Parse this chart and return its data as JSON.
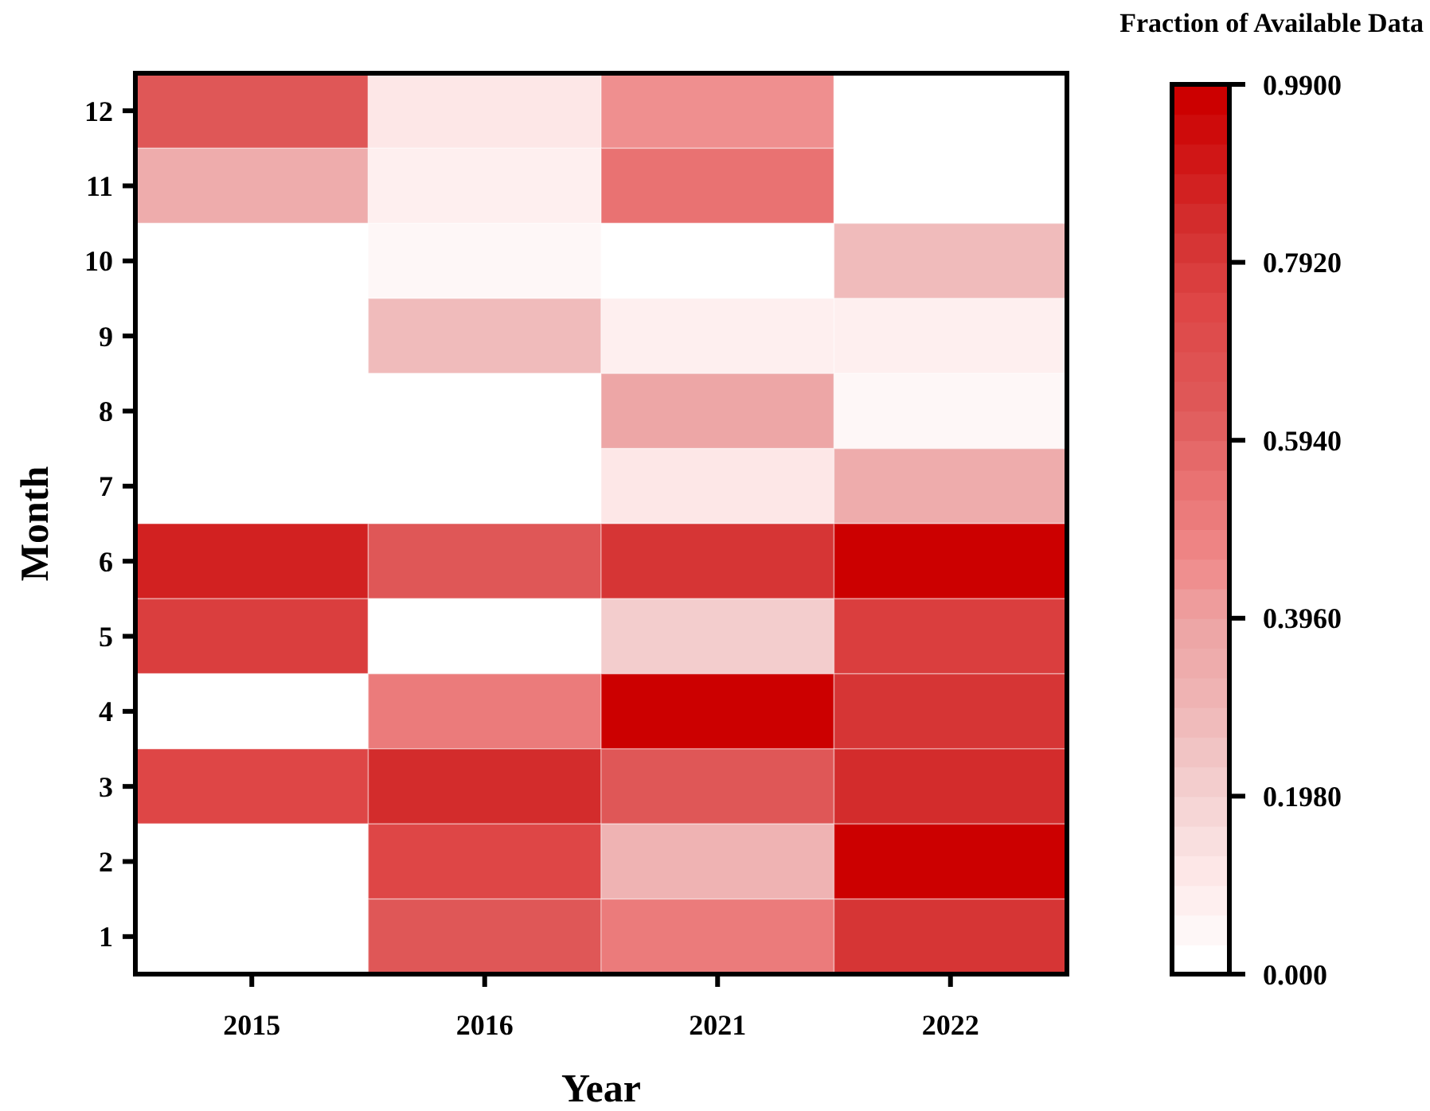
{
  "chart_data": {
    "type": "heatmap",
    "xlabel": "Year",
    "ylabel": "Month",
    "clabel": "Fraction of Available Data",
    "categories": [
      "2015",
      "2016",
      "2021",
      "2022"
    ],
    "y_categories": [
      "12",
      "11",
      "10",
      "9",
      "8",
      "7",
      "6",
      "5",
      "4",
      "3",
      "2",
      "1"
    ],
    "cells": [
      [
        0.63,
        0.12,
        0.46,
        0
      ],
      [
        0.35,
        0.09,
        0.56,
        0
      ],
      [
        0,
        0.06,
        0,
        0.28
      ],
      [
        0,
        0.28,
        0.09,
        0.09
      ],
      [
        0,
        0,
        0.38,
        0.06
      ],
      [
        0,
        0,
        0.12,
        0.35
      ],
      [
        0.88,
        0.64,
        0.8,
        0.99
      ],
      [
        0.76,
        0,
        0.2,
        0.76
      ],
      [
        0,
        0.5,
        0.99,
        0.8
      ],
      [
        0.75,
        0.84,
        0.64,
        0.84
      ],
      [
        0,
        0.75,
        0.32,
        0.96
      ],
      [
        0,
        0.64,
        0.5,
        0.8
      ]
    ],
    "clim": [
      0,
      0.99
    ],
    "cticks": [
      {
        "value": 0,
        "label": "0.000"
      },
      {
        "value": 0.198,
        "label": "0.1980"
      },
      {
        "value": 0.396,
        "label": "0.3960"
      },
      {
        "value": 0.594,
        "label": "0.5940"
      },
      {
        "value": 0.792,
        "label": "0.7920"
      },
      {
        "value": 0.99,
        "label": "0.9900"
      }
    ]
  }
}
